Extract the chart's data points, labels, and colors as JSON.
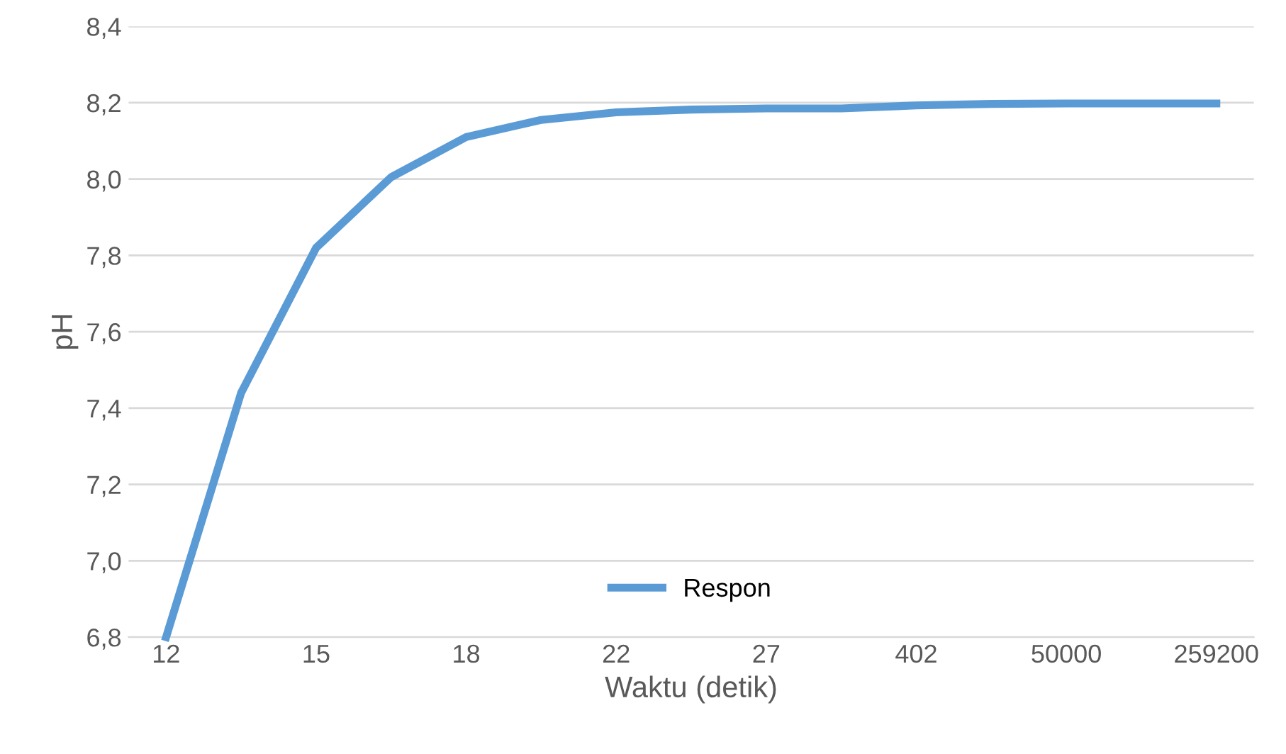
{
  "chart_data": {
    "type": "line",
    "xlabel": "Waktu (detik)",
    "ylabel": "pH",
    "categories": [
      "12",
      null,
      "15",
      null,
      "18",
      null,
      "22",
      null,
      "27",
      null,
      "402",
      null,
      "50000",
      null,
      "259200"
    ],
    "series": [
      {
        "name": "Respon",
        "color": "#5b9bd5",
        "values": [
          6.8,
          7.44,
          7.82,
          8.005,
          8.11,
          8.155,
          8.175,
          8.182,
          8.185,
          8.185,
          8.193,
          8.197,
          8.198,
          8.198,
          8.198
        ]
      }
    ],
    "ylim": [
      6.8,
      8.4
    ],
    "yticks": [
      {
        "value": 6.8,
        "label": "6,8"
      },
      {
        "value": 7.0,
        "label": "7,0"
      },
      {
        "value": 7.2,
        "label": "7,2"
      },
      {
        "value": 7.4,
        "label": "7,4"
      },
      {
        "value": 7.6,
        "label": "7,6"
      },
      {
        "value": 7.8,
        "label": "7,8"
      },
      {
        "value": 8.0,
        "label": "8,0"
      },
      {
        "value": 8.2,
        "label": "8,2"
      },
      {
        "value": 8.4,
        "label": "8,4"
      }
    ],
    "grid": "y",
    "legend": "bottom",
    "marker": "none",
    "line_style": "solid"
  }
}
